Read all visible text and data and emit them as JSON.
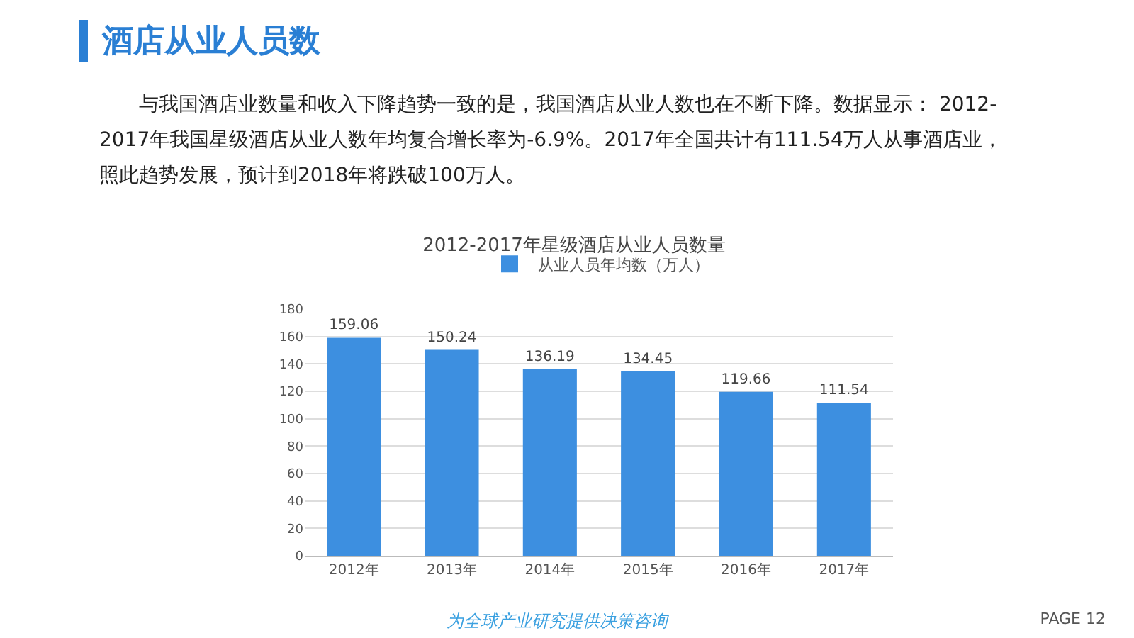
{
  "chart_data": {
    "type": "bar",
    "title": "2012-2017年星级酒店从业人员数量",
    "categories": [
      "2012年",
      "2013年",
      "2014年",
      "2015年",
      "2016年",
      "2017年"
    ],
    "series": [
      {
        "name": "从业人员年均数（万人）",
        "color": "#3d8fe0",
        "values": [
          159.06,
          150.24,
          136.19,
          134.45,
          119.66,
          111.54
        ]
      }
    ],
    "value_labels": [
      "159.06",
      "150.24",
      "136.19",
      "134.45",
      "119.66",
      "111.54"
    ],
    "ylim": [
      0,
      180
    ],
    "yticks": [
      0,
      20,
      40,
      60,
      80,
      100,
      120,
      140,
      160,
      180
    ],
    "grid": "y",
    "legend": "top",
    "annotations": [
      "酒店从业人员数",
      "与我国酒店业数量和收入下降趋势一致的是，我国酒店从业人数也在不断下降。数据显示：  2012-2017年我国星级酒店从业人数年均复合增长率为-6.9%。2017年全国共计有111.54万人从事酒店业，照此趋势发展，预计到2018年将跌破100万人。",
      "为全球产业研究提供决策咨询",
      "PAGE 12"
    ]
  }
}
